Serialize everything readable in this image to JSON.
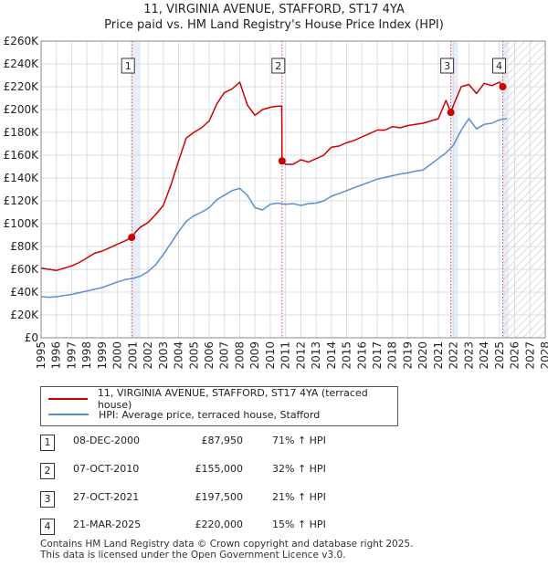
{
  "title": {
    "line1": "11, VIRGINIA AVENUE, STAFFORD, ST17 4YA",
    "line2": "Price paid vs. HM Land Registry's House Price Index (HPI)"
  },
  "colors": {
    "property": "#cc0000",
    "hpi": "#5b8ed0",
    "sale_band": "#e7eefa",
    "marker_line": "#dd4444",
    "grid": "#dddddd"
  },
  "legend": {
    "property_label": "11, VIRGINIA AVENUE, STAFFORD, ST17 4YA (terraced house)",
    "hpi_label": "HPI: Average price, terraced house, Stafford"
  },
  "sales": [
    {
      "num": "1",
      "date": "08-DEC-2000",
      "price": "£87,950",
      "hpi": "71% ↑ HPI"
    },
    {
      "num": "2",
      "date": "07-OCT-2010",
      "price": "£155,000",
      "hpi": "32% ↑ HPI"
    },
    {
      "num": "3",
      "date": "27-OCT-2021",
      "price": "£197,500",
      "hpi": "21% ↑ HPI"
    },
    {
      "num": "4",
      "date": "21-MAR-2025",
      "price": "£220,000",
      "hpi": "15% ↑ HPI"
    }
  ],
  "footer": {
    "line1": "Contains HM Land Registry data © Crown copyright and database right 2025.",
    "line2": "This data is licensed under the Open Government Licence v3.0."
  },
  "chart_data": {
    "type": "line",
    "title": "11, VIRGINIA AVENUE, STAFFORD, ST17 4YA — Price paid vs. HM Land Registry's House Price Index (HPI)",
    "xlabel": "",
    "ylabel": "",
    "xlim": [
      1995,
      2028
    ],
    "ylim": [
      0,
      260000
    ],
    "x_ticks": [
      1995,
      1996,
      1997,
      1998,
      1999,
      2000,
      2001,
      2002,
      2003,
      2004,
      2005,
      2006,
      2007,
      2008,
      2009,
      2010,
      2011,
      2012,
      2013,
      2014,
      2015,
      2016,
      2017,
      2018,
      2019,
      2020,
      2021,
      2022,
      2023,
      2024,
      2025,
      2026,
      2027,
      2028
    ],
    "y_ticks": [
      {
        "value": 0,
        "label": "£0"
      },
      {
        "value": 20000,
        "label": "£20K"
      },
      {
        "value": 40000,
        "label": "£40K"
      },
      {
        "value": 60000,
        "label": "£60K"
      },
      {
        "value": 80000,
        "label": "£80K"
      },
      {
        "value": 100000,
        "label": "£100K"
      },
      {
        "value": 120000,
        "label": "£120K"
      },
      {
        "value": 140000,
        "label": "£140K"
      },
      {
        "value": 160000,
        "label": "£160K"
      },
      {
        "value": 180000,
        "label": "£180K"
      },
      {
        "value": 200000,
        "label": "£200K"
      },
      {
        "value": 220000,
        "label": "£220K"
      },
      {
        "value": 240000,
        "label": "£240K"
      },
      {
        "value": 260000,
        "label": "£260K"
      }
    ],
    "grid": true,
    "forecast_start": 2025.25,
    "sale_bands": [
      [
        2000.93,
        2001.5
      ],
      [
        2021.82,
        2022.3
      ],
      [
        2025.22,
        2025.6
      ]
    ],
    "series": [
      {
        "name": "11, VIRGINIA AVENUE, STAFFORD, ST17 4YA (terraced house)",
        "x": [
          1995.0,
          1995.5,
          1996.0,
          1996.5,
          1997.0,
          1997.5,
          1998.0,
          1998.5,
          1999.0,
          1999.5,
          2000.0,
          2000.5,
          2000.93,
          2001.2,
          2001.5,
          2002.0,
          2002.5,
          2003.0,
          2003.5,
          2004.0,
          2004.5,
          2005.0,
          2005.5,
          2006.0,
          2006.5,
          2007.0,
          2007.5,
          2008.0,
          2008.5,
          2009.0,
          2009.5,
          2010.0,
          2010.5,
          2010.75,
          2010.77,
          2011.0,
          2011.5,
          2012.0,
          2012.5,
          2013.0,
          2013.5,
          2014.0,
          2014.5,
          2015.0,
          2015.5,
          2016.0,
          2016.5,
          2017.0,
          2017.5,
          2018.0,
          2018.5,
          2019.0,
          2019.5,
          2020.0,
          2020.5,
          2021.0,
          2021.5,
          2021.82,
          2022.0,
          2022.5,
          2023.0,
          2023.5,
          2024.0,
          2024.5,
          2025.0,
          2025.22
        ],
        "values": [
          61000,
          60000,
          59000,
          61000,
          63000,
          66000,
          70000,
          74000,
          76000,
          79000,
          82000,
          85000,
          87950,
          93000,
          97000,
          101000,
          108000,
          116000,
          134000,
          155000,
          175000,
          180000,
          184000,
          190000,
          205000,
          215000,
          218000,
          224000,
          204000,
          195000,
          200000,
          202000,
          203000,
          203000,
          155000,
          152000,
          152000,
          156000,
          154000,
          157000,
          160000,
          167000,
          168000,
          171000,
          173000,
          176000,
          179000,
          182000,
          182000,
          185000,
          184000,
          186000,
          187000,
          188000,
          190000,
          192000,
          208000,
          197500,
          204000,
          220000,
          222000,
          214000,
          223000,
          221000,
          224000,
          220000
        ]
      },
      {
        "name": "HPI: Average price, terraced house, Stafford",
        "x": [
          1995.0,
          1995.5,
          1996.0,
          1996.5,
          1997.0,
          1997.5,
          1998.0,
          1998.5,
          1999.0,
          1999.5,
          2000.0,
          2000.5,
          2001.0,
          2001.5,
          2002.0,
          2002.5,
          2003.0,
          2003.5,
          2004.0,
          2004.5,
          2005.0,
          2005.5,
          2006.0,
          2006.5,
          2007.0,
          2007.5,
          2008.0,
          2008.5,
          2009.0,
          2009.5,
          2010.0,
          2010.5,
          2011.0,
          2011.5,
          2012.0,
          2012.5,
          2013.0,
          2013.5,
          2014.0,
          2014.5,
          2015.0,
          2015.5,
          2016.0,
          2016.5,
          2017.0,
          2017.5,
          2018.0,
          2018.5,
          2019.0,
          2019.5,
          2020.0,
          2020.5,
          2021.0,
          2021.5,
          2022.0,
          2022.5,
          2023.0,
          2023.5,
          2024.0,
          2024.5,
          2025.0,
          2025.5
        ],
        "values": [
          36000,
          35500,
          36000,
          37000,
          38000,
          39500,
          41000,
          42500,
          44000,
          46500,
          49000,
          51000,
          52000,
          54000,
          58000,
          64000,
          73000,
          83000,
          93000,
          102000,
          107000,
          110000,
          114000,
          121000,
          125000,
          129000,
          131000,
          125000,
          114000,
          112000,
          117000,
          118000,
          117000,
          117500,
          116000,
          117500,
          118000,
          120000,
          124000,
          126500,
          129000,
          131500,
          134000,
          136500,
          139000,
          140500,
          142000,
          143500,
          144500,
          146000,
          147000,
          152000,
          157000,
          162000,
          169000,
          182000,
          192000,
          183000,
          187000,
          188000,
          191000,
          192000
        ]
      }
    ],
    "sales": [
      {
        "label": "1",
        "x": 2000.93,
        "y": 87950
      },
      {
        "label": "2",
        "x": 2010.77,
        "y": 155000
      },
      {
        "label": "3",
        "x": 2021.82,
        "y": 197500
      },
      {
        "label": "4",
        "x": 2025.22,
        "y": 220000
      }
    ]
  }
}
